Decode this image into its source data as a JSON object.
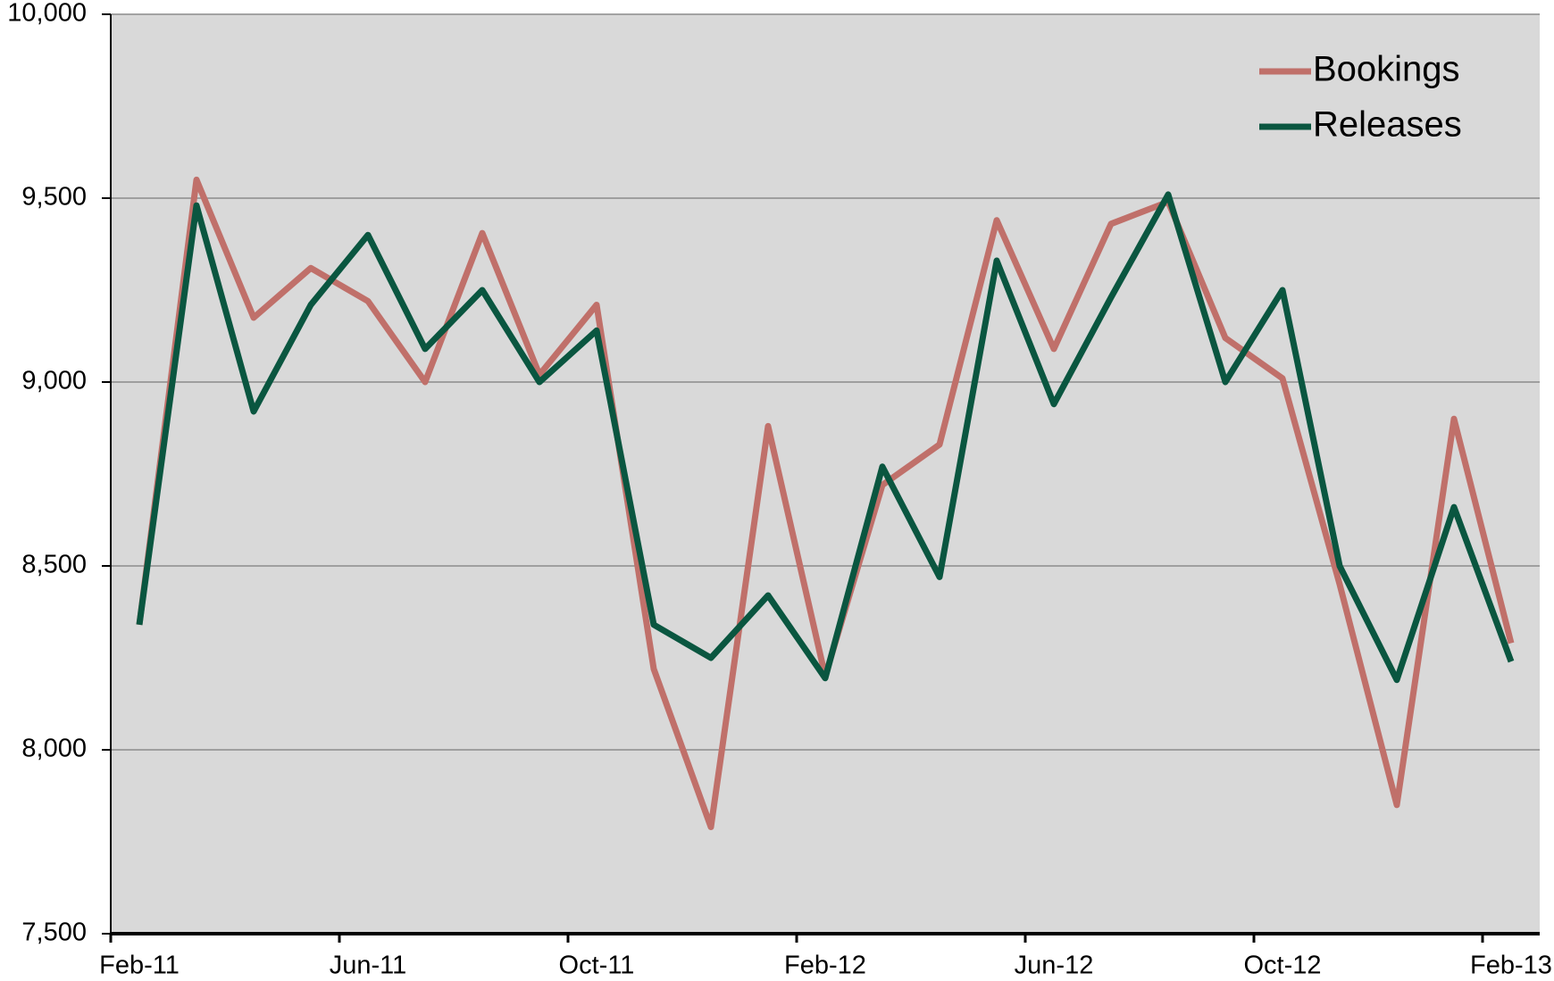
{
  "chart_data": {
    "type": "line",
    "categories": [
      "Feb-11",
      null,
      null,
      null,
      "Jun-11",
      null,
      null,
      null,
      "Oct-11",
      null,
      null,
      null,
      "Feb-12",
      null,
      null,
      null,
      "Jun-12",
      null,
      null,
      null,
      "Oct-12",
      null,
      null,
      null,
      "Feb-13"
    ],
    "series": [
      {
        "name": "Bookings",
        "color": "#c0706a",
        "values": [
          8340,
          9550,
          9175,
          9310,
          9220,
          9000,
          9405,
          9020,
          9210,
          8220,
          7790,
          8880,
          8200,
          8720,
          8830,
          9440,
          9090,
          9430,
          9490,
          9120,
          9010,
          8450,
          7850,
          8900,
          8290
        ]
      },
      {
        "name": "Releases",
        "color": "#0a5640",
        "values": [
          8340,
          9480,
          8920,
          9210,
          9400,
          9090,
          9250,
          9000,
          9140,
          8340,
          8250,
          8420,
          8195,
          8770,
          8470,
          9330,
          8940,
          9230,
          9510,
          9000,
          9250,
          8500,
          8190,
          8660,
          8240
        ]
      }
    ],
    "ylim": [
      7500,
      10000
    ],
    "yticks": [
      {
        "value": 7500,
        "label": "7,500"
      },
      {
        "value": 8000,
        "label": "8,000"
      },
      {
        "value": 8500,
        "label": "8,500"
      },
      {
        "value": 9000,
        "label": "9,000"
      },
      {
        "value": 9500,
        "label": "9,500"
      },
      {
        "value": 10000,
        "label": "10,000"
      }
    ],
    "grid": true,
    "legend": "upper right",
    "background": "#d9d9d9"
  }
}
